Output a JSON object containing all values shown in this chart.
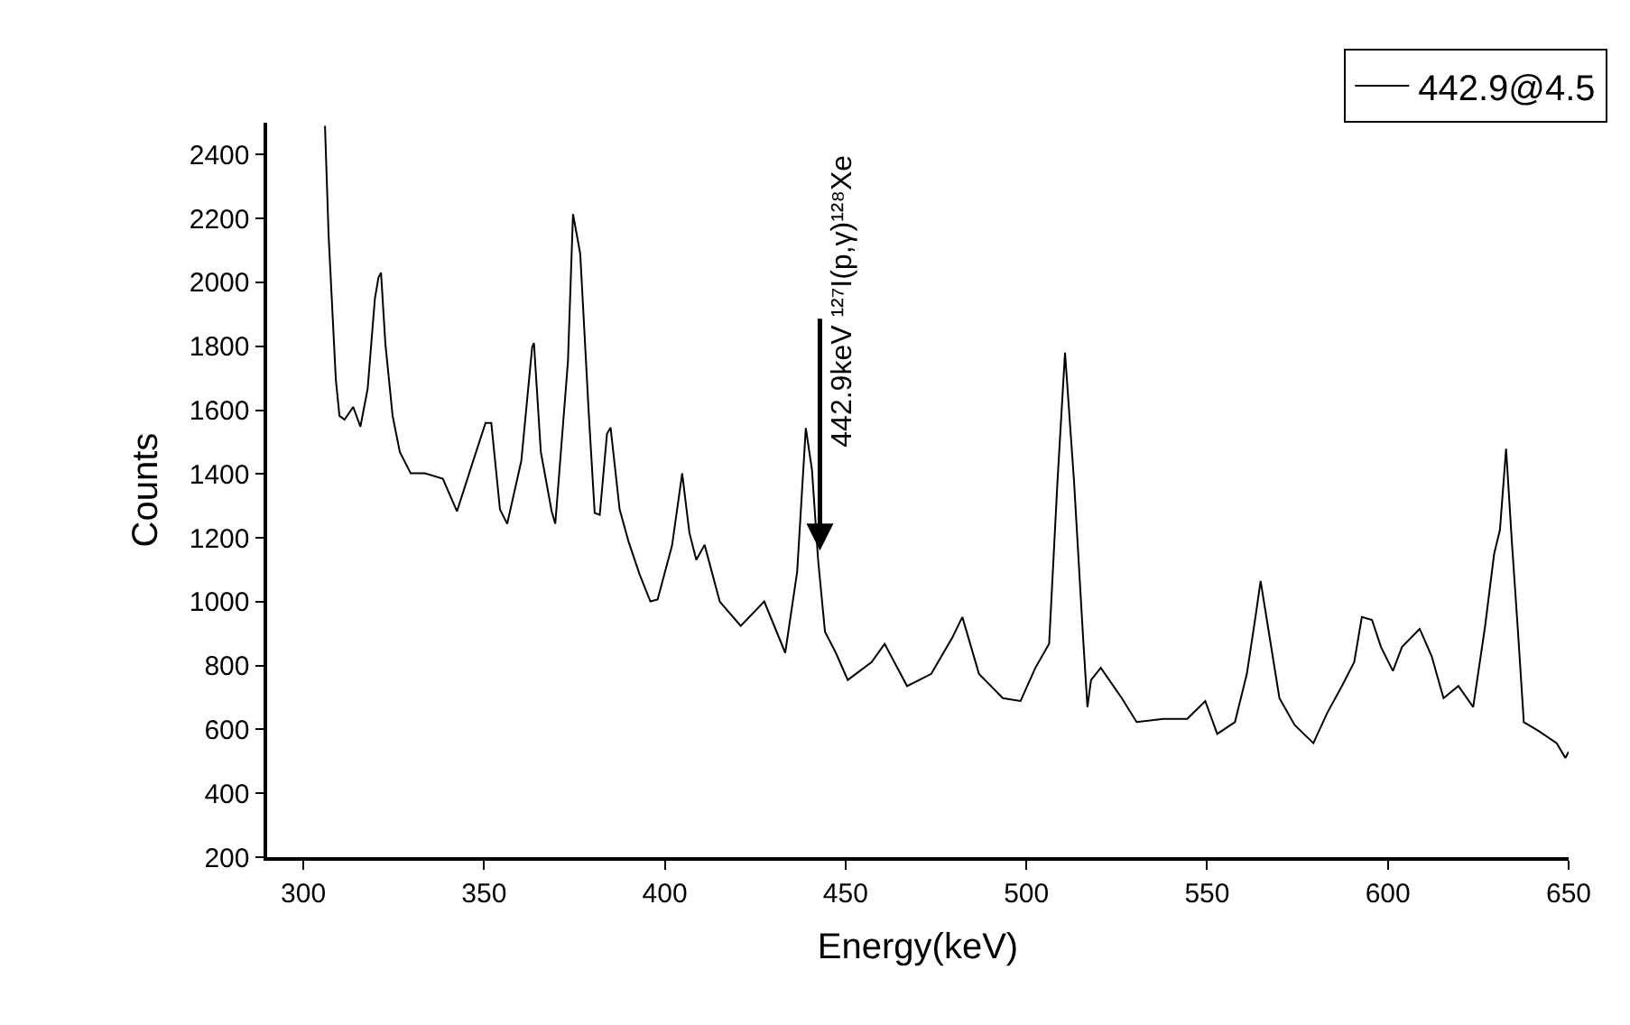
{
  "chart_data": {
    "type": "line",
    "xlabel": "Energy(keV)",
    "ylabel": "Counts",
    "x": [
      306,
      307,
      309,
      310,
      311.4,
      313.8,
      315.8,
      317.8,
      319.8,
      320.8,
      321.5,
      322.7,
      324.7,
      326.7,
      329.7,
      333.6,
      338.6,
      342.5,
      346.5,
      350.4,
      352,
      354.4,
      356.4,
      360.3,
      363.3,
      363.8,
      365.7,
      368.7,
      369.7,
      373.2,
      374.6,
      376.6,
      379,
      380.6,
      382,
      384,
      385,
      387.5,
      390,
      393,
      396,
      398,
      402,
      404.8,
      406.8,
      408.7,
      411,
      415.2,
      421,
      427.5,
      433.3,
      436.6,
      439,
      440.7,
      442.4,
      444.3,
      447.3,
      450.6,
      457.2,
      460.8,
      467,
      473.7,
      479.5,
      482.3,
      486.9,
      493.5,
      498.4,
      502.5,
      506.3,
      508.6,
      510.7,
      513.2,
      515.7,
      516.9,
      517.9,
      520.6,
      526.4,
      530.5,
      537.9,
      544.5,
      549.5,
      552.8,
      557.7,
      561,
      563.5,
      564.8,
      566.8,
      570,
      574.2,
      579.4,
      583.2,
      587.3,
      590.7,
      592.8,
      595.6,
      598.1,
      601.4,
      603.9,
      608.8,
      612.1,
      615.4,
      619.5,
      623.6,
      626.9,
      629.4,
      631,
      632.7,
      634.3,
      636,
      637.6,
      641.7,
      646.7,
      649.1,
      650
    ],
    "series": [
      {
        "name": "442.9@4.5",
        "color": "#000000",
        "values": [
          2490,
          2146,
          1695,
          1582,
          1570,
          1610,
          1548,
          1667,
          1949,
          2016,
          2030,
          1808,
          1582,
          1469,
          1402,
          1402,
          1385,
          1283,
          1424,
          1560,
          1560,
          1289,
          1244,
          1441,
          1797,
          1810,
          1469,
          1283,
          1244,
          1752,
          2214,
          2090,
          1582,
          1278,
          1272,
          1526,
          1545,
          1289,
          1187,
          1086,
          1001,
          1007,
          1176,
          1402,
          1216,
          1131,
          1178,
          1000,
          924,
          1001,
          840,
          1093,
          1544,
          1413,
          1131,
          906,
          840,
          755,
          811,
          868,
          736,
          774,
          887,
          952,
          774,
          698,
          689,
          793,
          868,
          1375,
          1780,
          1375,
          887,
          670,
          755,
          793,
          698,
          623,
          633,
          633,
          689,
          586,
          623,
          774,
          962,
          1065,
          924,
          698,
          614,
          557,
          651,
          736,
          811,
          952,
          943,
          858,
          783,
          858,
          915,
          830,
          698,
          736,
          670,
          924,
          1150,
          1225,
          1479,
          1187,
          905,
          623,
          595,
          557,
          511,
          530
        ]
      }
    ],
    "xlim": [
      290,
      650
    ],
    "xticks": [
      300,
      350,
      400,
      450,
      500,
      550,
      600,
      650
    ],
    "ylim": [
      200,
      2500
    ],
    "yticks": [
      200,
      400,
      600,
      800,
      1000,
      1200,
      1400,
      1600,
      1800,
      2000,
      2200,
      2400
    ],
    "annotations": [
      {
        "text": "442.9keV ¹²⁷I(p,γ)¹²⁸Xe",
        "x": 442.9,
        "y": 1160
      }
    ],
    "grid": false,
    "legend": "top right",
    "marker": "none",
    "line_style": "solid"
  }
}
